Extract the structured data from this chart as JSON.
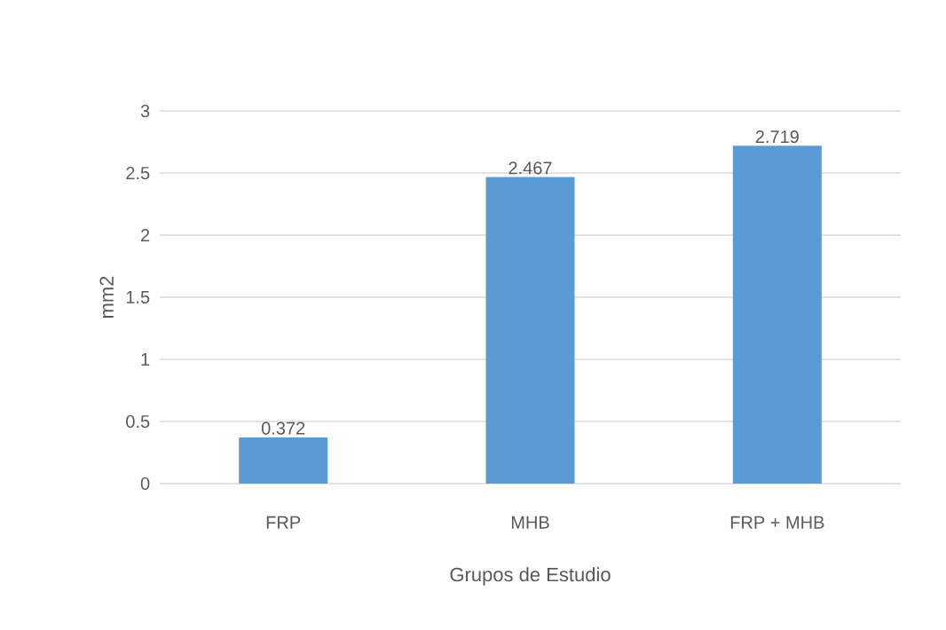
{
  "chart_data": {
    "type": "bar",
    "xlabel": "Grupos de Estudio",
    "ylabel": "mm2",
    "categories": [
      "FRP",
      "MHB",
      "FRP + MHB"
    ],
    "values": [
      0.372,
      2.467,
      2.719
    ],
    "color": "#5b9bd5",
    "ylim": [
      0,
      3
    ],
    "yticks": [
      0,
      0.5,
      1,
      1.5,
      2,
      2.5,
      3
    ],
    "grid": "y",
    "data_labels": true
  }
}
